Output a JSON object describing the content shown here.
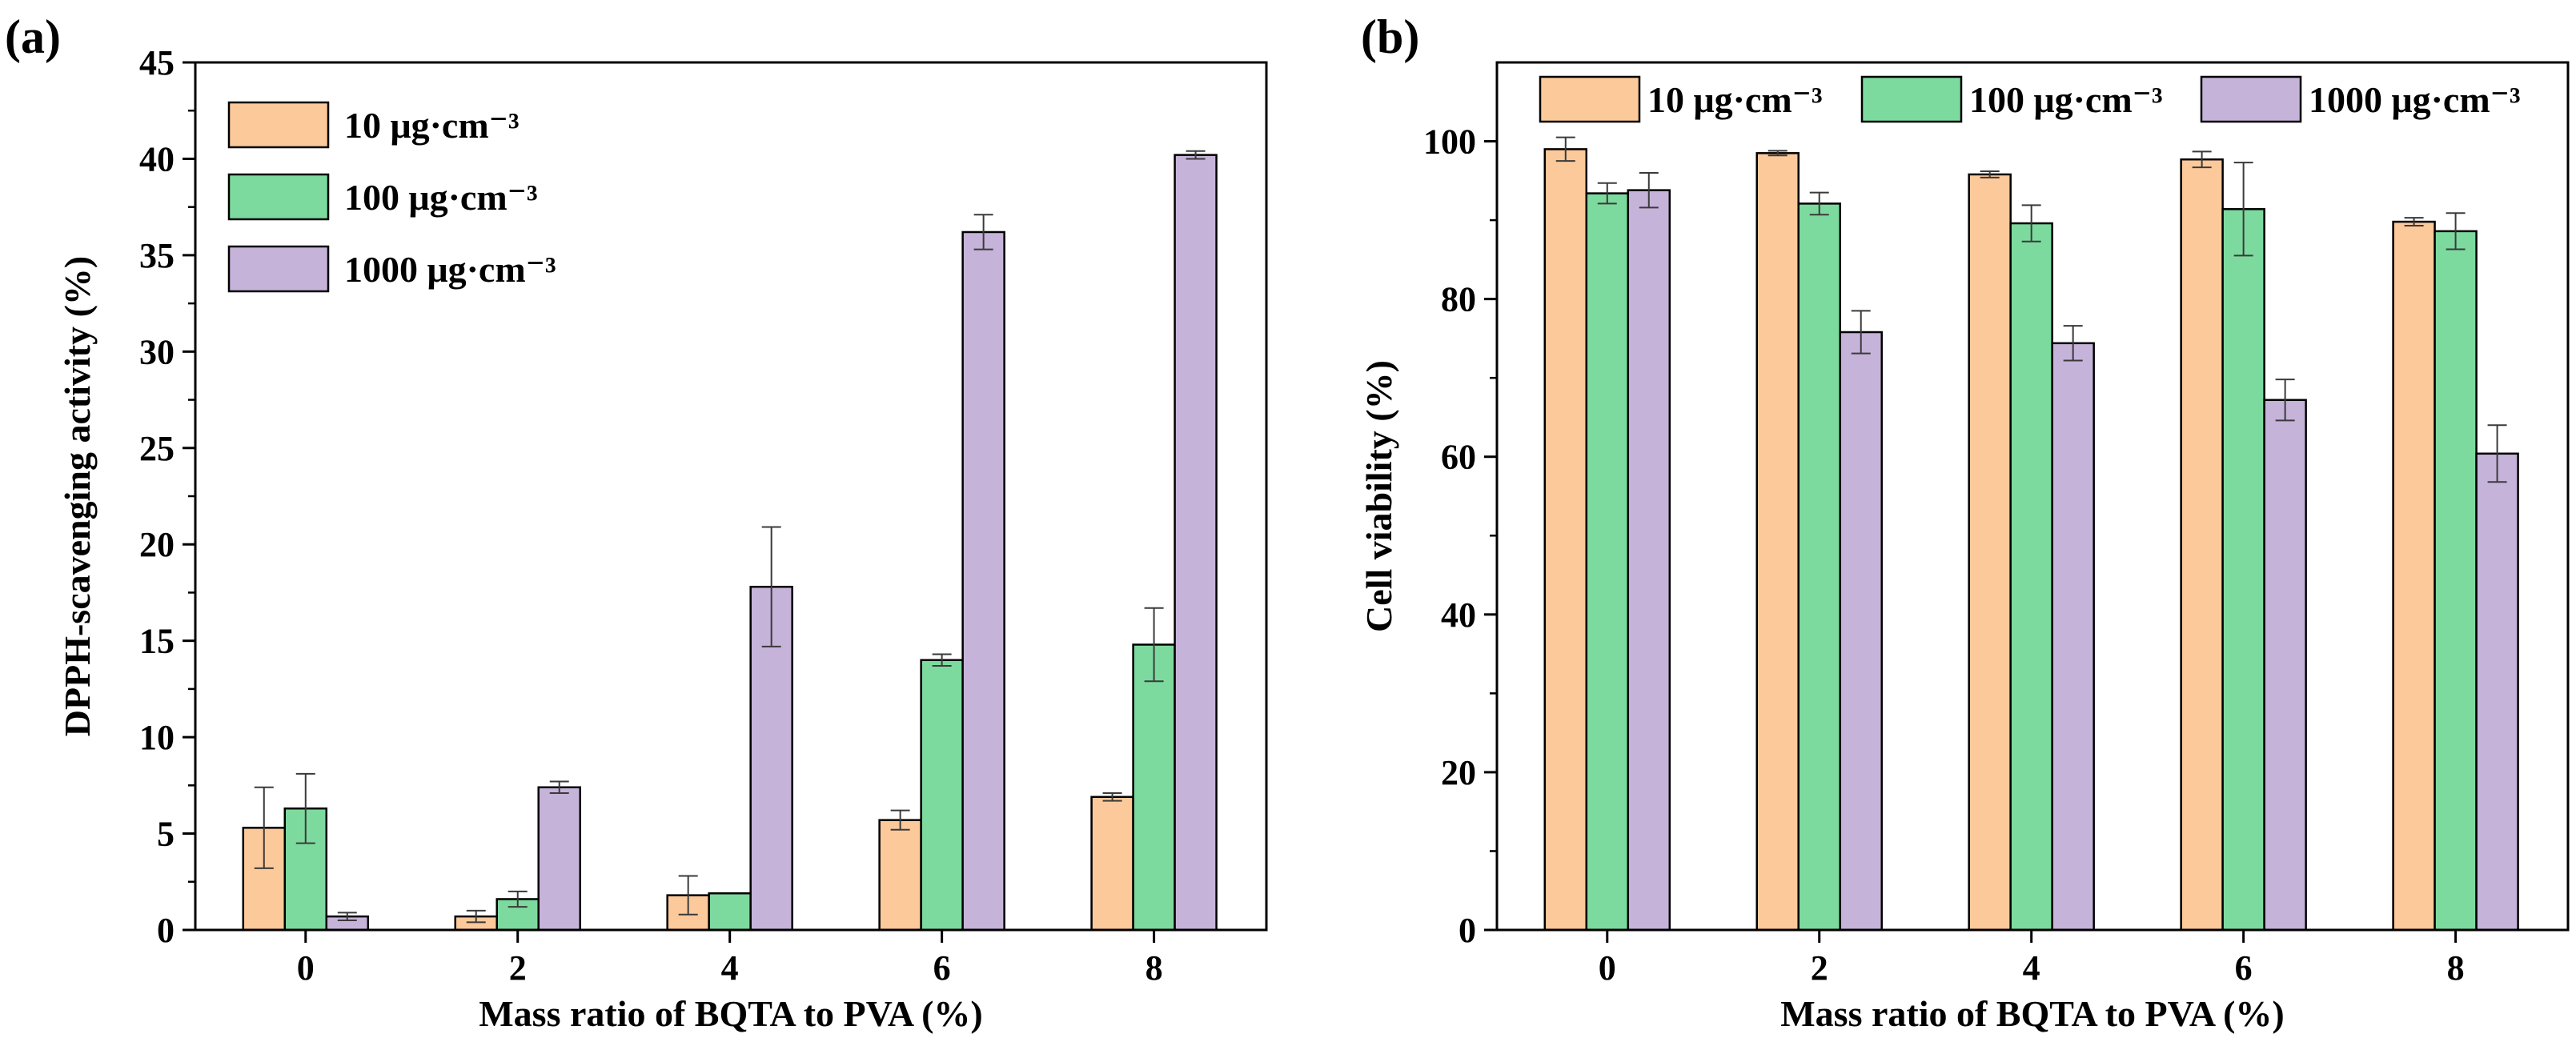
{
  "colors": {
    "series_10": "#FCC99B",
    "series_100": "#7DDA9E",
    "series_1000": "#C6B3DA",
    "axis": "#000000",
    "errorbar": "#3a3a3a"
  },
  "chart_data": [
    {
      "type": "bar",
      "panel_label": "(a)",
      "title": "",
      "xlabel": "Mass ratio of BQTA to PVA (%)",
      "ylabel": "DPPH-scavenging activity (%)",
      "categories": [
        "0",
        "2",
        "4",
        "6",
        "8"
      ],
      "ylim": [
        0,
        45
      ],
      "yticks": [
        "0",
        "5",
        "10",
        "15",
        "20",
        "25",
        "30",
        "35",
        "40",
        "45"
      ],
      "grid": false,
      "legend_placement": "top-left, stacked",
      "series": [
        {
          "name": "10 μg·cm⁻³",
          "values": [
            5.3,
            0.7,
            1.8,
            5.7,
            6.9
          ],
          "errors": [
            2.1,
            0.3,
            1.0,
            0.5,
            0.2
          ]
        },
        {
          "name": "100 μg·cm⁻³",
          "values": [
            6.3,
            1.6,
            1.9,
            14.0,
            14.8
          ],
          "errors": [
            1.8,
            0.4,
            0.0,
            0.3,
            1.9
          ]
        },
        {
          "name": "1000 μg·cm⁻³",
          "values": [
            0.7,
            7.4,
            17.8,
            36.2,
            40.2
          ],
          "errors": [
            0.2,
            0.3,
            3.1,
            0.9,
            0.2
          ]
        }
      ]
    },
    {
      "type": "bar",
      "panel_label": "(b)",
      "title": "",
      "xlabel": "Mass ratio of BQTA to PVA (%)",
      "ylabel": "Cell viability (%)",
      "categories": [
        "0",
        "2",
        "4",
        "6",
        "8"
      ],
      "ylim": [
        0,
        110
      ],
      "yticks": [
        "0",
        "20",
        "40",
        "60",
        "80",
        "100"
      ],
      "grid": false,
      "legend_placement": "top, single row",
      "series": [
        {
          "name": "10 μg·cm⁻³",
          "values": [
            99.0,
            98.5,
            95.8,
            97.7,
            89.8
          ],
          "errors": [
            1.5,
            0.3,
            0.4,
            1.0,
            0.5
          ]
        },
        {
          "name": "100 μg·cm⁻³",
          "values": [
            93.4,
            92.1,
            89.6,
            91.4,
            88.6
          ],
          "errors": [
            1.3,
            1.4,
            2.3,
            5.9,
            2.3
          ]
        },
        {
          "name": "1000 μg·cm⁻³",
          "values": [
            93.8,
            75.8,
            74.4,
            67.2,
            60.4
          ],
          "errors": [
            2.2,
            2.7,
            2.2,
            2.6,
            3.6
          ]
        }
      ]
    }
  ]
}
